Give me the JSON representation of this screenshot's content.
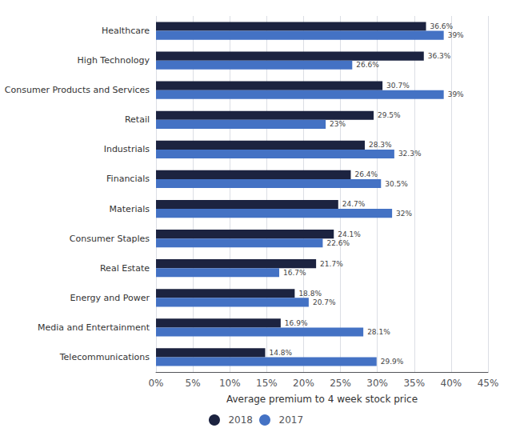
{
  "chart_data": {
    "type": "bar",
    "orientation": "horizontal",
    "categories": [
      "Healthcare",
      "High Technology",
      "Consumer Products and Services",
      "Retail",
      "Industrials",
      "Financials",
      "Materials",
      "Consumer Staples",
      "Real Estate",
      "Energy and Power",
      "Media and Entertainment",
      "Telecommunications"
    ],
    "series": [
      {
        "name": "2018",
        "color": "#1C2340",
        "values": [
          36.6,
          36.3,
          30.7,
          29.5,
          28.3,
          26.4,
          24.7,
          24.1,
          21.7,
          18.8,
          16.9,
          14.8
        ],
        "value_labels": [
          "36.6%",
          "36.3%",
          "30.7%",
          "29.5%",
          "28.3%",
          "26.4%",
          "24.7%",
          "24.1%",
          "21.7%",
          "18.8%",
          "16.9%",
          "14.8%"
        ]
      },
      {
        "name": "2017",
        "color": "#4472C4",
        "values": [
          39.0,
          26.6,
          39.0,
          23.0,
          32.3,
          30.5,
          32.0,
          22.6,
          16.7,
          20.7,
          28.1,
          29.9
        ],
        "value_labels": [
          "39%",
          "26.6%",
          "39%",
          "23%",
          "32.3%",
          "30.5%",
          "32%",
          "22.6%",
          "16.7%",
          "20.7%",
          "28.1%",
          "29.9%"
        ]
      }
    ],
    "x_label": "Average premium to 4 week stock price",
    "xlim": [
      0,
      45
    ],
    "xticks": [
      {
        "value": 0,
        "label": "0%"
      },
      {
        "value": 5,
        "label": "5%"
      },
      {
        "value": 10,
        "label": "10%"
      },
      {
        "value": 15,
        "label": "15%"
      },
      {
        "value": 20,
        "label": "20%"
      },
      {
        "value": 25,
        "label": "25%"
      },
      {
        "value": 30,
        "label": "30%"
      },
      {
        "value": 35,
        "label": "35%"
      },
      {
        "value": 40,
        "label": "40%"
      },
      {
        "value": 45,
        "label": "45%"
      }
    ],
    "grid": true,
    "legend": "bottom",
    "data_labels": true
  }
}
